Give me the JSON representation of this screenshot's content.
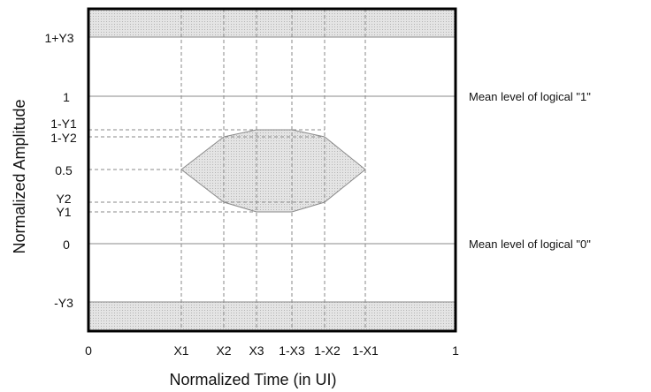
{
  "diagram": {
    "xlabel": "Normalized Time (in UI)",
    "ylabel": "Normalized Amplitude",
    "x_ticks": [
      "0",
      "X1",
      "X2",
      "X3",
      "1-X3",
      "1-X2",
      "1-X1",
      "1"
    ],
    "y_ticks": [
      "1+Y3",
      "1",
      "1-Y1",
      "1-Y2",
      "0.5",
      "Y2",
      "Y1",
      "0",
      "-Y3"
    ],
    "annotations": {
      "mean_one": "Mean level of logical \"1\"",
      "mean_zero": "Mean level of logical \"0\""
    },
    "colors": {
      "frame": "#000000",
      "grid": "#8a8a8a",
      "mask_fill": "#d6d6d6",
      "mask_edge": "#8a8a8a"
    }
  }
}
